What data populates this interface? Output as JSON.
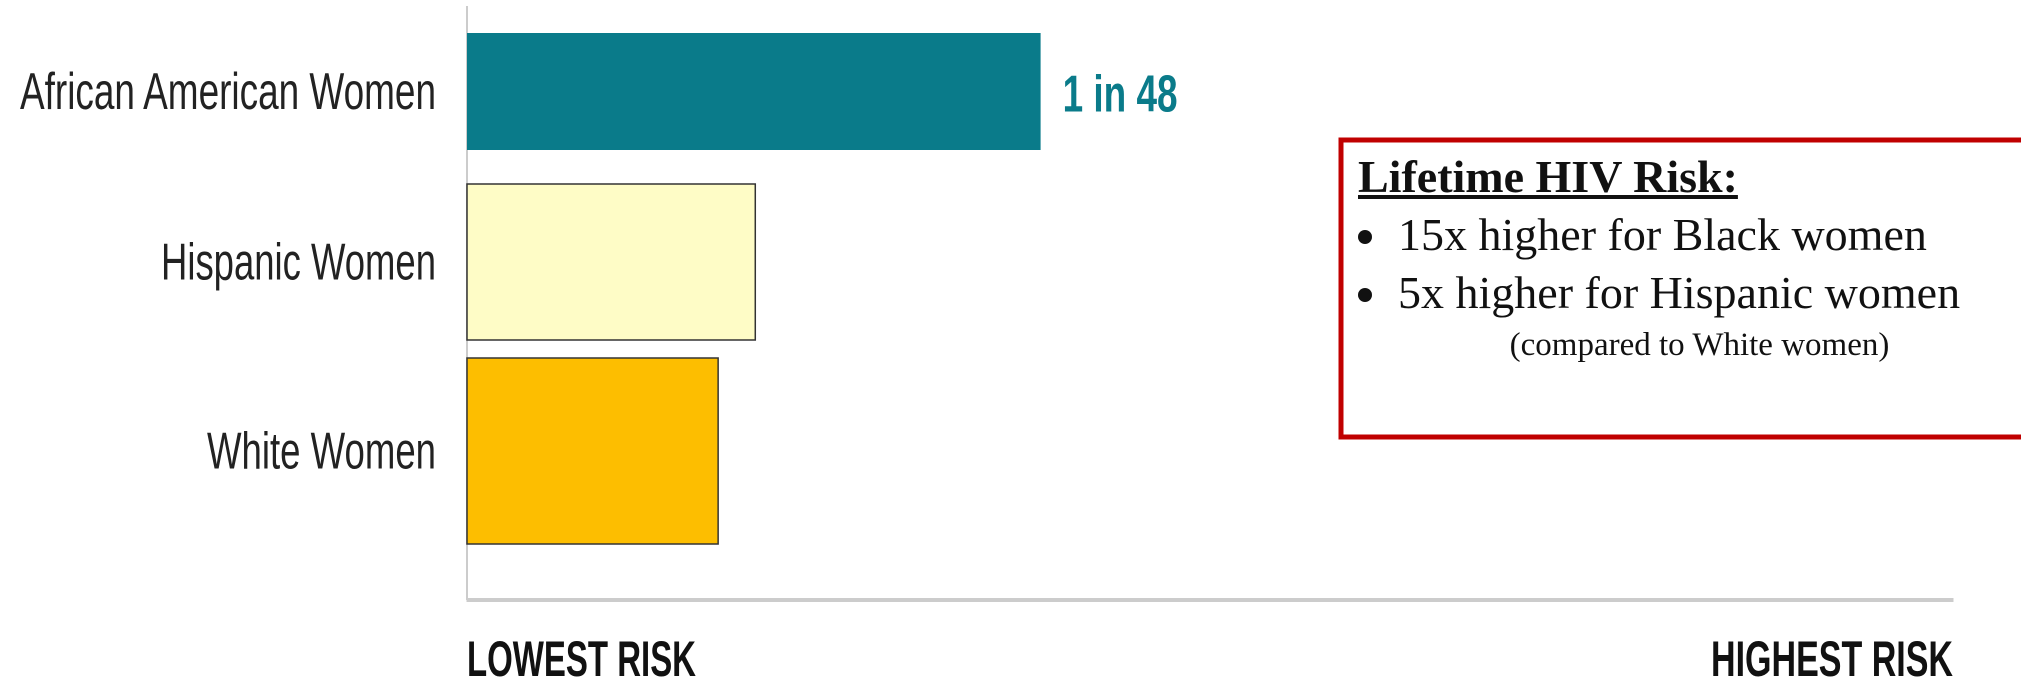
{
  "chart_data": {
    "type": "hbar",
    "categories": [
      "African American Women",
      "Hispanic Women",
      "White Women"
    ],
    "values": [
      38.6,
      19.4,
      16.9
    ],
    "colors": [
      "#0a7b8a",
      "#fefcc6",
      "#fdbe00"
    ],
    "annotation": "1 in 48",
    "xlim": [
      0,
      100
    ],
    "xticks": [
      {
        "value": 0,
        "label": "LOWEST RISK"
      },
      {
        "value": 100,
        "label": "HIGHEST RISK"
      }
    ],
    "text_box": {
      "title": "Lifetime HIV Risk:",
      "items": [
        "15x higher for Black women",
        "5x higher for Hispanic women"
      ],
      "note": "(compared to White women)"
    }
  }
}
